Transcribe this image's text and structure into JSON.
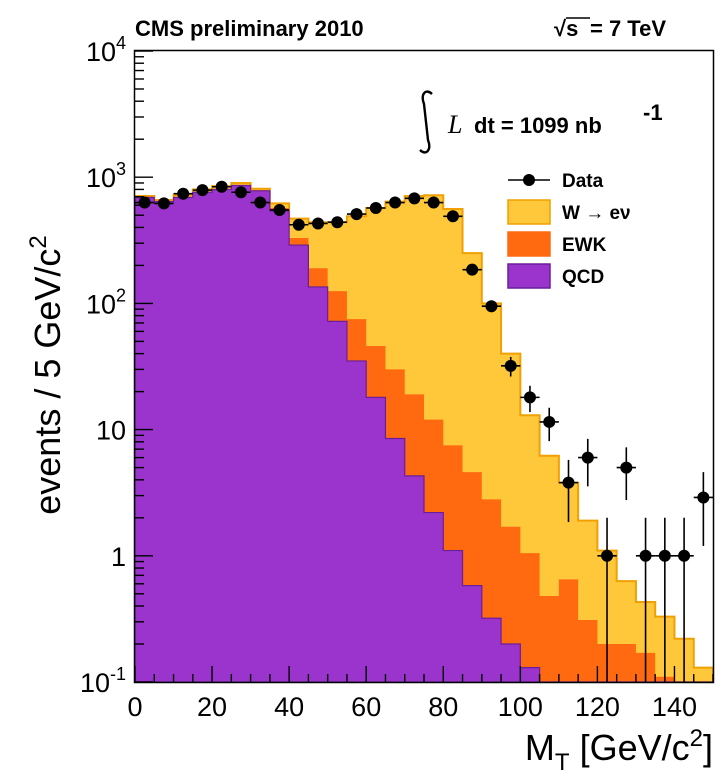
{
  "chart_data": {
    "type": "histogram",
    "header_left": "CMS preliminary 2010",
    "header_right": {
      "sqrt": "√s",
      "rest": " = 7 TeV"
    },
    "luminosity": {
      "symbol": "L",
      "text": "dt = 1099 nb",
      "exponent": "-1"
    },
    "xlabel": {
      "main": "M",
      "sub": "T",
      "units": " [GeV/c",
      "units_exp": "2",
      "units_close": "]"
    },
    "ylabel": {
      "main": "events / 5 GeV/c",
      "exp": "2"
    },
    "xlim": [
      0,
      150
    ],
    "ylim": [
      0.1,
      10000
    ],
    "yscale": "log",
    "bin_width": 5,
    "x_ticks": [
      "0",
      "20",
      "40",
      "60",
      "80",
      "100",
      "120",
      "140"
    ],
    "y_ticks": [
      {
        "base": "10",
        "exp": "-1",
        "value": 0.1
      },
      {
        "base": "1",
        "exp": "",
        "value": 1
      },
      {
        "base": "10",
        "exp": "",
        "value": 10
      },
      {
        "base": "10",
        "exp": "2",
        "value": 100
      },
      {
        "base": "10",
        "exp": "3",
        "value": 1000
      },
      {
        "base": "10",
        "exp": "4",
        "value": 10000
      }
    ],
    "legend": [
      {
        "key": "data",
        "label": "Data",
        "type": "marker"
      },
      {
        "key": "w",
        "label": "W → eν",
        "type": "fill"
      },
      {
        "key": "ewk",
        "label": "EWK",
        "type": "fill"
      },
      {
        "key": "qcd",
        "label": "QCD",
        "type": "fill"
      }
    ],
    "colors": {
      "w": "#FFC83A",
      "w_line": "#F0A000",
      "ewk": "#FF6A10",
      "qcd": "#9A34CC",
      "qcd_line": "#6A1E99",
      "data": "#000000"
    },
    "stack_totals": {
      "qcd": [
        690,
        640,
        690,
        760,
        800,
        860,
        780,
        540,
        290,
        135,
        72,
        35,
        18,
        8.5,
        4.3,
        2.2,
        1.1,
        0.58,
        0.32,
        0.2,
        0.13,
        0.1,
        0.1,
        0.1,
        0.1,
        0.1,
        0.1,
        0.1,
        0.1,
        0.1
      ],
      "qcd_ewk": [
        700,
        650,
        700,
        770,
        810,
        870,
        790,
        570,
        330,
        190,
        125,
        75,
        46,
        30,
        19,
        12,
        7.5,
        4.6,
        2.8,
        1.7,
        1.05,
        0.48,
        0.65,
        0.31,
        0.2,
        0.2,
        0.17,
        0.11,
        0.1,
        0.1
      ],
      "total": [
        710,
        660,
        720,
        800,
        850,
        900,
        810,
        620,
        470,
        440,
        440,
        490,
        570,
        640,
        710,
        720,
        560,
        250,
        100,
        40,
        13,
        6.2,
        3.8,
        1.9,
        1.1,
        0.63,
        0.43,
        0.33,
        0.22,
        0.13
      ]
    },
    "data_points": [
      {
        "x": 2.5,
        "y": 630
      },
      {
        "x": 7.5,
        "y": 620
      },
      {
        "x": 12.5,
        "y": 740
      },
      {
        "x": 17.5,
        "y": 790
      },
      {
        "x": 22.5,
        "y": 840
      },
      {
        "x": 27.5,
        "y": 760
      },
      {
        "x": 32.5,
        "y": 630
      },
      {
        "x": 37.5,
        "y": 550
      },
      {
        "x": 42.5,
        "y": 420
      },
      {
        "x": 47.5,
        "y": 430
      },
      {
        "x": 52.5,
        "y": 440
      },
      {
        "x": 57.5,
        "y": 510
      },
      {
        "x": 62.5,
        "y": 570
      },
      {
        "x": 67.5,
        "y": 630
      },
      {
        "x": 72.5,
        "y": 680
      },
      {
        "x": 77.5,
        "y": 630
      },
      {
        "x": 82.5,
        "y": 490
      },
      {
        "x": 87.5,
        "y": 185
      },
      {
        "x": 92.5,
        "y": 95
      },
      {
        "x": 97.5,
        "y": 32
      },
      {
        "x": 102.5,
        "y": 18
      },
      {
        "x": 107.5,
        "y": 11.5
      },
      {
        "x": 112.5,
        "y": 3.8
      },
      {
        "x": 117.5,
        "y": 6
      },
      {
        "x": 122.5,
        "y": 1
      },
      {
        "x": 127.5,
        "y": 5
      },
      {
        "x": 132.5,
        "y": 1
      },
      {
        "x": 137.5,
        "y": 1
      },
      {
        "x": 142.5,
        "y": 1
      },
      {
        "x": 147.5,
        "y": 2.9
      }
    ]
  }
}
